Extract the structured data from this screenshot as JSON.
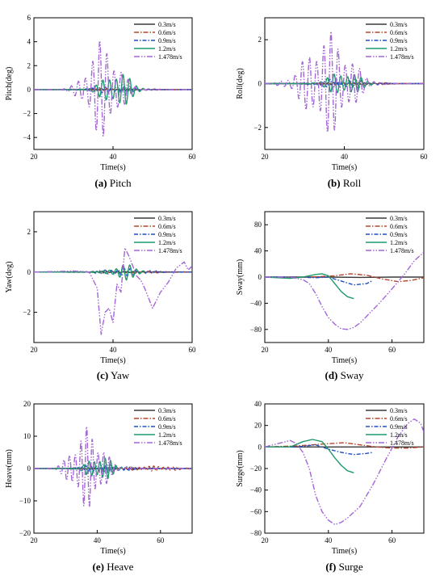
{
  "series_styles": [
    {
      "name": "0.3m/s",
      "color": "#3a3a3a",
      "dash": ""
    },
    {
      "name": "0.6m/s",
      "color": "#b5452e",
      "dash": "6,2,1.5,2"
    },
    {
      "name": "0.9m/s",
      "color": "#1f4fc4",
      "dash": "5,2,1.5,2"
    },
    {
      "name": "1.2m/s",
      "color": "#1e9a6a",
      "dash": ""
    },
    {
      "name": "1.478m/s",
      "color": "#a366d6",
      "dash": "7,2,1.5,2,1.5,2"
    }
  ],
  "chart_data": [
    {
      "type": "line",
      "caption_letter": "(a)",
      "caption_text": " Pitch",
      "xlabel": "Time(s)",
      "ylabel": "Pitch(deg)",
      "xlim": [
        20,
        60
      ],
      "ylim": [
        -5,
        6
      ],
      "xticks": [
        20,
        40,
        60
      ],
      "yticks": [
        -4,
        -2,
        0,
        2,
        4,
        6
      ],
      "series": [
        {
          "name": "0.3m/s",
          "kind": "osc",
          "amp": 0.06,
          "center": 40,
          "width": 10,
          "period": 1.3,
          "start": 20,
          "end": 60
        },
        {
          "name": "0.6m/s",
          "kind": "osc",
          "amp": 0.1,
          "center": 42,
          "width": 10,
          "period": 1.5,
          "start": 20,
          "end": 60
        },
        {
          "name": "0.9m/s",
          "kind": "osc",
          "amp": 0.3,
          "center": 40,
          "width": 7,
          "period": 1.6,
          "start": 20,
          "end": 60
        },
        {
          "name": "1.2m/s",
          "kind": "osc",
          "amp": 1.6,
          "center": 41,
          "width": 4.5,
          "period": 1.7,
          "start": 20,
          "end": 48
        },
        {
          "name": "1.478m/s",
          "kind": "osc",
          "amp": 4.2,
          "center": 37.5,
          "width": 5,
          "period": 1.8,
          "start": 20,
          "end": 60
        }
      ]
    },
    {
      "type": "line",
      "caption_letter": "(b)",
      "caption_text": " Roll",
      "xlabel": "Time(s)",
      "ylabel": "Roll(deg)",
      "xlim": [
        20,
        60
      ],
      "ylim": [
        -3,
        3
      ],
      "xticks": [
        20,
        40,
        60
      ],
      "yticks": [
        -2,
        0,
        2
      ],
      "series": [
        {
          "name": "0.3m/s",
          "kind": "osc",
          "amp": 0.05,
          "center": 40,
          "width": 10,
          "period": 1.3,
          "start": 20,
          "end": 60
        },
        {
          "name": "0.6m/s",
          "kind": "osc",
          "amp": 0.08,
          "center": 42,
          "width": 10,
          "period": 1.5,
          "start": 20,
          "end": 60
        },
        {
          "name": "0.9m/s",
          "kind": "osc",
          "amp": 0.25,
          "center": 40,
          "width": 7,
          "period": 1.6,
          "start": 20,
          "end": 60
        },
        {
          "name": "1.2m/s",
          "kind": "osc",
          "amp": 0.6,
          "center": 40,
          "width": 5,
          "period": 1.7,
          "start": 20,
          "end": 48
        },
        {
          "name": "1.478m/s",
          "kind": "osc",
          "amp": 2.4,
          "center": 36,
          "width": 7,
          "period": 1.8,
          "start": 20,
          "end": 60
        }
      ]
    },
    {
      "type": "line",
      "caption_letter": "(c)",
      "caption_text": " Yaw",
      "xlabel": "Time(s)",
      "ylabel": "Yaw(deg)",
      "xlim": [
        20,
        60
      ],
      "ylim": [
        -3.5,
        3
      ],
      "xticks": [
        20,
        40,
        60
      ],
      "yticks": [
        -2,
        0,
        2
      ],
      "series": [
        {
          "name": "0.3m/s",
          "kind": "osc",
          "amp": 0.04,
          "center": 40,
          "width": 10,
          "period": 1.3,
          "start": 20,
          "end": 60
        },
        {
          "name": "0.6m/s",
          "kind": "osc",
          "amp": 0.06,
          "center": 45,
          "width": 10,
          "period": 1.5,
          "start": 20,
          "end": 60
        },
        {
          "name": "0.9m/s",
          "kind": "osc",
          "amp": 0.2,
          "center": 43,
          "width": 7,
          "period": 1.6,
          "start": 20,
          "end": 60
        },
        {
          "name": "1.2m/s",
          "kind": "osc",
          "amp": 0.4,
          "center": 43,
          "width": 4,
          "period": 1.7,
          "start": 20,
          "end": 48
        },
        {
          "name": "1.478m/s",
          "kind": "pts",
          "pts": [
            [
              20,
              0
            ],
            [
              30,
              0.05
            ],
            [
              34,
              0
            ],
            [
              36,
              -0.8
            ],
            [
              37,
              -3.1
            ],
            [
              38,
              -2
            ],
            [
              39,
              -1.8
            ],
            [
              40,
              -2.5
            ],
            [
              41,
              -0.6
            ],
            [
              42,
              -1
            ],
            [
              43,
              1.2
            ],
            [
              44,
              0.8
            ],
            [
              45,
              0.3
            ],
            [
              46,
              -0.2
            ],
            [
              47,
              -0.4
            ],
            [
              48,
              -0.8
            ],
            [
              50,
              -1.8
            ],
            [
              52,
              -1
            ],
            [
              54,
              -0.5
            ],
            [
              56,
              0.2
            ],
            [
              58,
              0.5
            ],
            [
              59,
              0.1
            ],
            [
              60,
              0.3
            ]
          ]
        }
      ]
    },
    {
      "type": "line",
      "caption_letter": "(d)",
      "caption_text": " Sway",
      "xlabel": "Time(s)",
      "ylabel": "Sway(mm)",
      "xlim": [
        20,
        70
      ],
      "ylim": [
        -100,
        100
      ],
      "xticks": [
        20,
        40,
        60
      ],
      "yticks": [
        -80,
        -40,
        0,
        40,
        80
      ],
      "series": [
        {
          "name": "0.3m/s",
          "kind": "pts",
          "pts": [
            [
              20,
              0
            ],
            [
              30,
              0
            ],
            [
              40,
              0
            ],
            [
              50,
              -0.5
            ],
            [
              60,
              0
            ],
            [
              70,
              0
            ]
          ]
        },
        {
          "name": "0.6m/s",
          "kind": "pts",
          "pts": [
            [
              20,
              0
            ],
            [
              35,
              0
            ],
            [
              42,
              2
            ],
            [
              47,
              5
            ],
            [
              52,
              3
            ],
            [
              57,
              -3
            ],
            [
              62,
              -7
            ],
            [
              66,
              -5
            ],
            [
              70,
              -1
            ]
          ]
        },
        {
          "name": "0.9m/s",
          "kind": "pts",
          "pts": [
            [
              20,
              0
            ],
            [
              30,
              0
            ],
            [
              36,
              -1
            ],
            [
              40,
              0
            ],
            [
              44,
              -6
            ],
            [
              48,
              -12
            ],
            [
              52,
              -10
            ],
            [
              54,
              -5
            ]
          ]
        },
        {
          "name": "1.2m/s",
          "kind": "pts",
          "pts": [
            [
              20,
              0
            ],
            [
              28,
              -2
            ],
            [
              32,
              0
            ],
            [
              36,
              4
            ],
            [
              38,
              5
            ],
            [
              40,
              2
            ],
            [
              42,
              -10
            ],
            [
              44,
              -22
            ],
            [
              46,
              -30
            ],
            [
              48,
              -33
            ]
          ]
        },
        {
          "name": "1.478m/s",
          "kind": "pts",
          "pts": [
            [
              20,
              0
            ],
            [
              28,
              0
            ],
            [
              32,
              -4
            ],
            [
              34,
              -10
            ],
            [
              36,
              -25
            ],
            [
              38,
              -45
            ],
            [
              40,
              -62
            ],
            [
              42,
              -72
            ],
            [
              44,
              -79
            ],
            [
              46,
              -80
            ],
            [
              48,
              -77
            ],
            [
              50,
              -70
            ],
            [
              52,
              -60
            ],
            [
              56,
              -40
            ],
            [
              60,
              -18
            ],
            [
              64,
              5
            ],
            [
              67,
              25
            ],
            [
              70,
              38
            ]
          ]
        }
      ]
    },
    {
      "type": "line",
      "caption_letter": "(e)",
      "caption_text": " Heave",
      "xlabel": "Time(s)",
      "ylabel": "Heave(mm)",
      "xlim": [
        20,
        70
      ],
      "ylim": [
        -20,
        20
      ],
      "xticks": [
        20,
        40,
        60
      ],
      "yticks": [
        -20,
        -10,
        0,
        10,
        20
      ],
      "series": [
        {
          "name": "0.3m/s",
          "kind": "osc",
          "amp": 0.3,
          "center": 45,
          "width": 12,
          "period": 1.3,
          "start": 20,
          "end": 70
        },
        {
          "name": "0.6m/s",
          "kind": "osc",
          "amp": 0.8,
          "center": 58,
          "width": 10,
          "period": 1.5,
          "start": 20,
          "end": 70
        },
        {
          "name": "0.9m/s",
          "kind": "osc",
          "amp": 1.5,
          "center": 42,
          "width": 8,
          "period": 1.6,
          "start": 20,
          "end": 70
        },
        {
          "name": "1.2m/s",
          "kind": "osc",
          "amp": 4,
          "center": 41,
          "width": 5,
          "period": 1.7,
          "start": 20,
          "end": 48
        },
        {
          "name": "1.478m/s",
          "kind": "osc",
          "amp": 13,
          "center": 37,
          "width": 6,
          "period": 1.8,
          "start": 20,
          "end": 70
        }
      ]
    },
    {
      "type": "line",
      "caption_letter": "(f)",
      "caption_text": " Surge",
      "xlabel": "Time(s)",
      "ylabel": "Surge(mm)",
      "xlim": [
        20,
        70
      ],
      "ylim": [
        -80,
        40
      ],
      "xticks": [
        20,
        40,
        60
      ],
      "yticks": [
        -80,
        -60,
        -40,
        -20,
        0,
        20,
        40
      ],
      "series": [
        {
          "name": "0.3m/s",
          "kind": "pts",
          "pts": [
            [
              20,
              0
            ],
            [
              70,
              0
            ]
          ]
        },
        {
          "name": "0.6m/s",
          "kind": "pts",
          "pts": [
            [
              20,
              0
            ],
            [
              30,
              1
            ],
            [
              40,
              3
            ],
            [
              45,
              4
            ],
            [
              50,
              2
            ],
            [
              55,
              0
            ],
            [
              60,
              -1
            ],
            [
              65,
              -1
            ],
            [
              70,
              0
            ]
          ]
        },
        {
          "name": "0.9m/s",
          "kind": "pts",
          "pts": [
            [
              20,
              0
            ],
            [
              30,
              0
            ],
            [
              36,
              2
            ],
            [
              40,
              -2
            ],
            [
              44,
              -5
            ],
            [
              48,
              -7
            ],
            [
              52,
              -6
            ],
            [
              54,
              -5
            ]
          ]
        },
        {
          "name": "1.2m/s",
          "kind": "pts",
          "pts": [
            [
              20,
              0
            ],
            [
              28,
              0
            ],
            [
              32,
              5
            ],
            [
              35,
              7
            ],
            [
              38,
              5
            ],
            [
              40,
              -2
            ],
            [
              42,
              -10
            ],
            [
              44,
              -17
            ],
            [
              46,
              -22
            ],
            [
              48,
              -24
            ]
          ]
        },
        {
          "name": "1.478m/s",
          "kind": "pts",
          "pts": [
            [
              20,
              0
            ],
            [
              28,
              6
            ],
            [
              30,
              3
            ],
            [
              32,
              -5
            ],
            [
              34,
              -20
            ],
            [
              36,
              -45
            ],
            [
              38,
              -60
            ],
            [
              40,
              -68
            ],
            [
              42,
              -72
            ],
            [
              44,
              -70
            ],
            [
              46,
              -66
            ],
            [
              50,
              -55
            ],
            [
              54,
              -35
            ],
            [
              58,
              -12
            ],
            [
              62,
              10
            ],
            [
              65,
              22
            ],
            [
              67,
              26
            ],
            [
              69,
              22
            ],
            [
              70,
              14
            ]
          ]
        }
      ]
    }
  ]
}
